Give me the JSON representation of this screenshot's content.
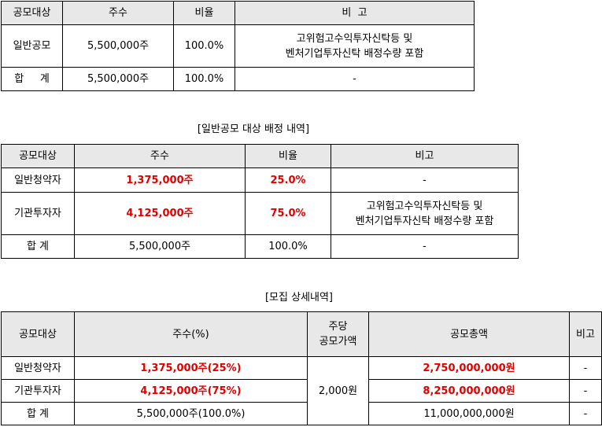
{
  "table1": {
    "headers": [
      "공모대상",
      "주수",
      "비율",
      "비  고"
    ],
    "rows": [
      {
        "target": "일반공모",
        "shares": "5,500,000주",
        "ratio": "100.0%",
        "note": [
          "고위험고수익투자신탁등 및",
          "벤처기업투자신탁 배정수량 포함"
        ]
      },
      {
        "target": "합     계",
        "shares": "5,500,000주",
        "ratio": "100.0%",
        "note": [
          "-"
        ]
      }
    ]
  },
  "caption2": "[일반공모 대상 배정 내역]",
  "table2": {
    "headers": [
      "공모대상",
      "주수",
      "비율",
      "비고"
    ],
    "rows": [
      {
        "target": "일반청약자",
        "shares": "1,375,000주",
        "ratio": "25.0%",
        "note": [
          "-"
        ]
      },
      {
        "target": "기관투자자",
        "shares": "4,125,000주",
        "ratio": "75.0%",
        "note": [
          "고위험고수익투자신탁등 및",
          "벤처기업투자신탁 배정수량 포함"
        ]
      },
      {
        "target": "합 계",
        "shares": "5,500,000주",
        "ratio": "100.0%",
        "note": [
          "-"
        ]
      }
    ]
  },
  "caption3": "[모집 상세내역]",
  "table3": {
    "headers": [
      "공모대상",
      "주수(%)",
      [
        "주당",
        "공모가액"
      ],
      "공모총액",
      "비고"
    ],
    "price": "2,000원",
    "rows": [
      {
        "target": "일반청약자",
        "shares": "1,375,000주(25%)",
        "total": "2,750,000,000원",
        "note": "-"
      },
      {
        "target": "기관투자자",
        "shares": "4,125,000주(75%)",
        "total": "8,250,000,000원",
        "note": "-"
      },
      {
        "target": "합 계",
        "shares": "5,500,000주(100.0%)",
        "total": "11,000,000,000원",
        "note": "-"
      }
    ]
  },
  "colors": {
    "header_bg": "#e8e8e8",
    "highlight": "#e00000",
    "border": "#000000"
  }
}
